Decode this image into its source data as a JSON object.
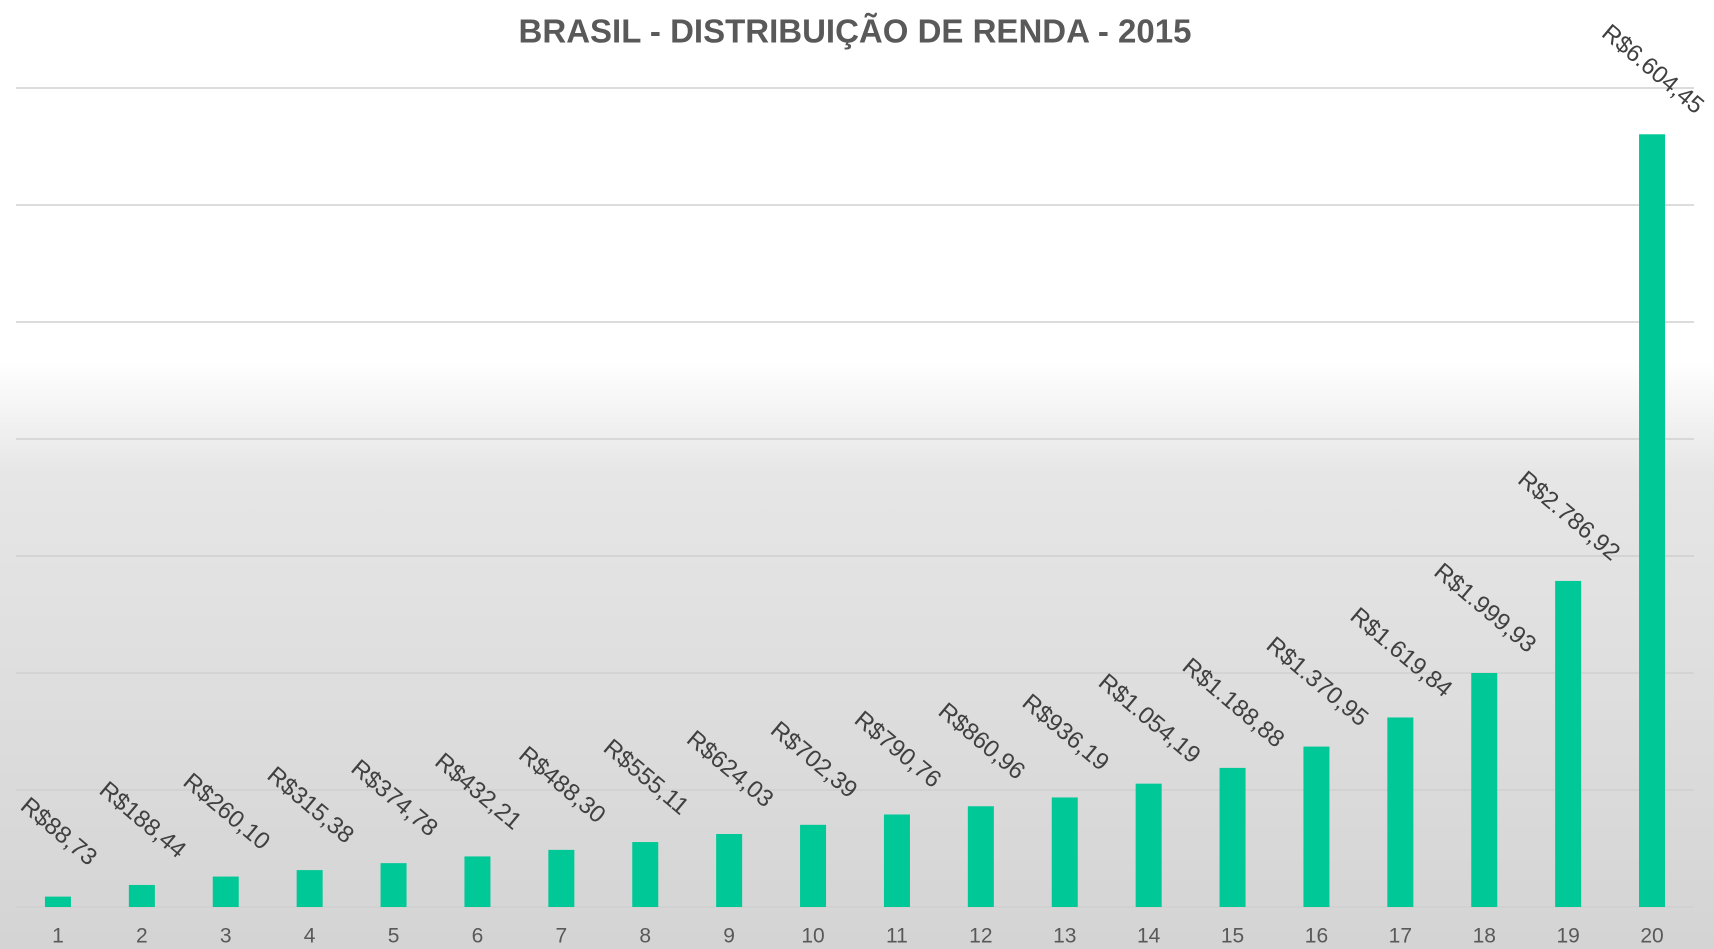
{
  "chart_data": {
    "type": "bar",
    "title": "BRASIL - DISTRIBUIÇÃO DE RENDA - 2015",
    "categories": [
      "1",
      "2",
      "3",
      "4",
      "5",
      "6",
      "7",
      "8",
      "9",
      "10",
      "11",
      "12",
      "13",
      "14",
      "15",
      "16",
      "17",
      "18",
      "19",
      "20"
    ],
    "values": [
      88.73,
      188.44,
      260.1,
      315.38,
      374.78,
      432.21,
      488.3,
      555.11,
      624.03,
      702.39,
      790.76,
      860.96,
      936.19,
      1054.19,
      1188.88,
      1370.95,
      1619.84,
      1999.93,
      2786.92,
      6604.45
    ],
    "value_labels": [
      "R$88,73",
      "R$188,44",
      "R$260,10",
      "R$315,38",
      "R$374,78",
      "R$432,21",
      "R$488,30",
      "R$555,11",
      "R$624,03",
      "R$702,39",
      "R$790,76",
      "R$860,96",
      "R$936,19",
      "R$1.054,19",
      "R$1.188,88",
      "R$1.370,95",
      "R$1.619,84",
      "R$1.999,93",
      "R$2.786,92",
      "R$6.604,45"
    ],
    "color": "#00c896",
    "ylim": [
      0,
      7000
    ],
    "yticks": [
      0,
      1000,
      2000,
      3000,
      4000,
      5000,
      6000,
      7000
    ],
    "grid": true
  }
}
